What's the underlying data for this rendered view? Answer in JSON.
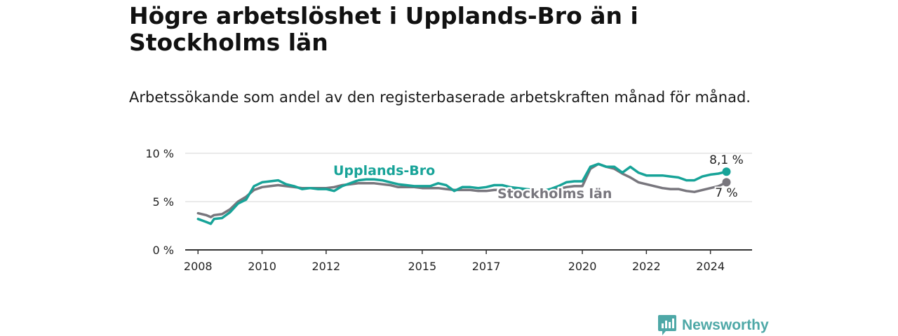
{
  "title": "Högre arbetslöshet i Upplands-Bro än i Stockholms län",
  "subtitle": "Arbetssökande som andel av den registerbaserade arbetskraften månad för månad.",
  "brand": "Newsworthy",
  "colors": {
    "upplands": "#17a398",
    "stockholm": "#78767d",
    "grid": "#dddddd",
    "axis": "#333333",
    "text": "#222222",
    "brand": "#4ea8a7"
  },
  "chart_data": {
    "type": "line",
    "title": "Högre arbetslöshet i Upplands-Bro än i Stockholms län",
    "subtitle": "Arbetssökande som andel av den registerbaserade arbetskraften månad för månad.",
    "xlabel": "",
    "ylabel": "",
    "xlim": [
      2007.6,
      2025.3
    ],
    "ylim": [
      0,
      10
    ],
    "y_ticks": [
      0,
      5,
      10
    ],
    "y_tick_labels": [
      "0 %",
      "5 %",
      "10 %"
    ],
    "x_ticks": [
      2008,
      2010,
      2012,
      2015,
      2017,
      2020,
      2022,
      2024
    ],
    "x_tick_labels": [
      "2008",
      "2010",
      "2012",
      "2015",
      "2017",
      "2020",
      "2022",
      "2024"
    ],
    "grid": true,
    "series": [
      {
        "name": "Upplands-Bro",
        "label": "Upplands-Bro",
        "end_label": "8,1 %",
        "x": [
          2008.0,
          2008.25,
          2008.4,
          2008.5,
          2008.75,
          2009.0,
          2009.25,
          2009.5,
          2009.75,
          2010.0,
          2010.25,
          2010.5,
          2010.75,
          2011.0,
          2011.25,
          2011.5,
          2011.75,
          2012.0,
          2012.25,
          2012.5,
          2012.75,
          2013.0,
          2013.25,
          2013.5,
          2013.75,
          2014.0,
          2014.25,
          2014.5,
          2014.75,
          2015.0,
          2015.25,
          2015.5,
          2015.75,
          2016.0,
          2016.25,
          2016.5,
          2016.75,
          2017.0,
          2017.25,
          2017.5,
          2017.75,
          2018.0,
          2018.25,
          2018.5,
          2018.75,
          2019.0,
          2019.25,
          2019.5,
          2019.75,
          2020.0,
          2020.25,
          2020.5,
          2020.75,
          2021.0,
          2021.25,
          2021.5,
          2021.75,
          2022.0,
          2022.25,
          2022.5,
          2022.75,
          2023.0,
          2023.25,
          2023.5,
          2023.75,
          2024.0,
          2024.25,
          2024.5
        ],
        "values": [
          3.2,
          2.9,
          2.7,
          3.2,
          3.3,
          3.9,
          4.8,
          5.2,
          6.6,
          7.0,
          7.1,
          7.2,
          6.8,
          6.6,
          6.3,
          6.4,
          6.3,
          6.3,
          6.1,
          6.6,
          6.9,
          7.2,
          7.3,
          7.3,
          7.2,
          7.0,
          6.8,
          6.7,
          6.6,
          6.6,
          6.6,
          6.9,
          6.7,
          6.1,
          6.5,
          6.5,
          6.4,
          6.5,
          6.7,
          6.7,
          6.5,
          6.4,
          6.3,
          6.2,
          6.1,
          6.3,
          6.6,
          7.0,
          7.1,
          7.1,
          8.6,
          8.9,
          8.6,
          8.6,
          8.0,
          8.6,
          8.0,
          7.7,
          7.7,
          7.7,
          7.6,
          7.5,
          7.2,
          7.2,
          7.6,
          7.8,
          7.9,
          8.1
        ]
      },
      {
        "name": "Stockholms län",
        "label": "Stockholms län",
        "end_label": "7 %",
        "x": [
          2008.0,
          2008.25,
          2008.4,
          2008.5,
          2008.75,
          2009.0,
          2009.25,
          2009.5,
          2009.75,
          2010.0,
          2010.25,
          2010.5,
          2010.75,
          2011.0,
          2011.25,
          2011.5,
          2011.75,
          2012.0,
          2012.25,
          2012.5,
          2012.75,
          2013.0,
          2013.25,
          2013.5,
          2013.75,
          2014.0,
          2014.25,
          2014.5,
          2014.75,
          2015.0,
          2015.25,
          2015.5,
          2015.75,
          2016.0,
          2016.25,
          2016.5,
          2016.75,
          2017.0,
          2017.25,
          2017.5,
          2017.75,
          2018.0,
          2018.25,
          2018.5,
          2018.75,
          2019.0,
          2019.25,
          2019.5,
          2019.75,
          2020.0,
          2020.25,
          2020.5,
          2020.75,
          2021.0,
          2021.25,
          2021.5,
          2021.75,
          2022.0,
          2022.25,
          2022.5,
          2022.75,
          2023.0,
          2023.25,
          2023.5,
          2023.75,
          2024.0,
          2024.25,
          2024.5
        ],
        "values": [
          3.8,
          3.6,
          3.4,
          3.6,
          3.7,
          4.2,
          5.0,
          5.5,
          6.2,
          6.5,
          6.6,
          6.7,
          6.6,
          6.5,
          6.4,
          6.4,
          6.4,
          6.4,
          6.5,
          6.7,
          6.8,
          6.9,
          6.9,
          6.9,
          6.8,
          6.7,
          6.5,
          6.5,
          6.5,
          6.4,
          6.4,
          6.4,
          6.3,
          6.2,
          6.2,
          6.2,
          6.1,
          6.1,
          6.2,
          6.2,
          6.2,
          6.2,
          6.1,
          6.1,
          6.1,
          6.2,
          6.3,
          6.5,
          6.6,
          6.6,
          8.4,
          8.9,
          8.6,
          8.4,
          7.9,
          7.5,
          7.0,
          6.8,
          6.6,
          6.4,
          6.3,
          6.3,
          6.1,
          6.0,
          6.2,
          6.4,
          6.6,
          7.0
        ]
      }
    ]
  }
}
